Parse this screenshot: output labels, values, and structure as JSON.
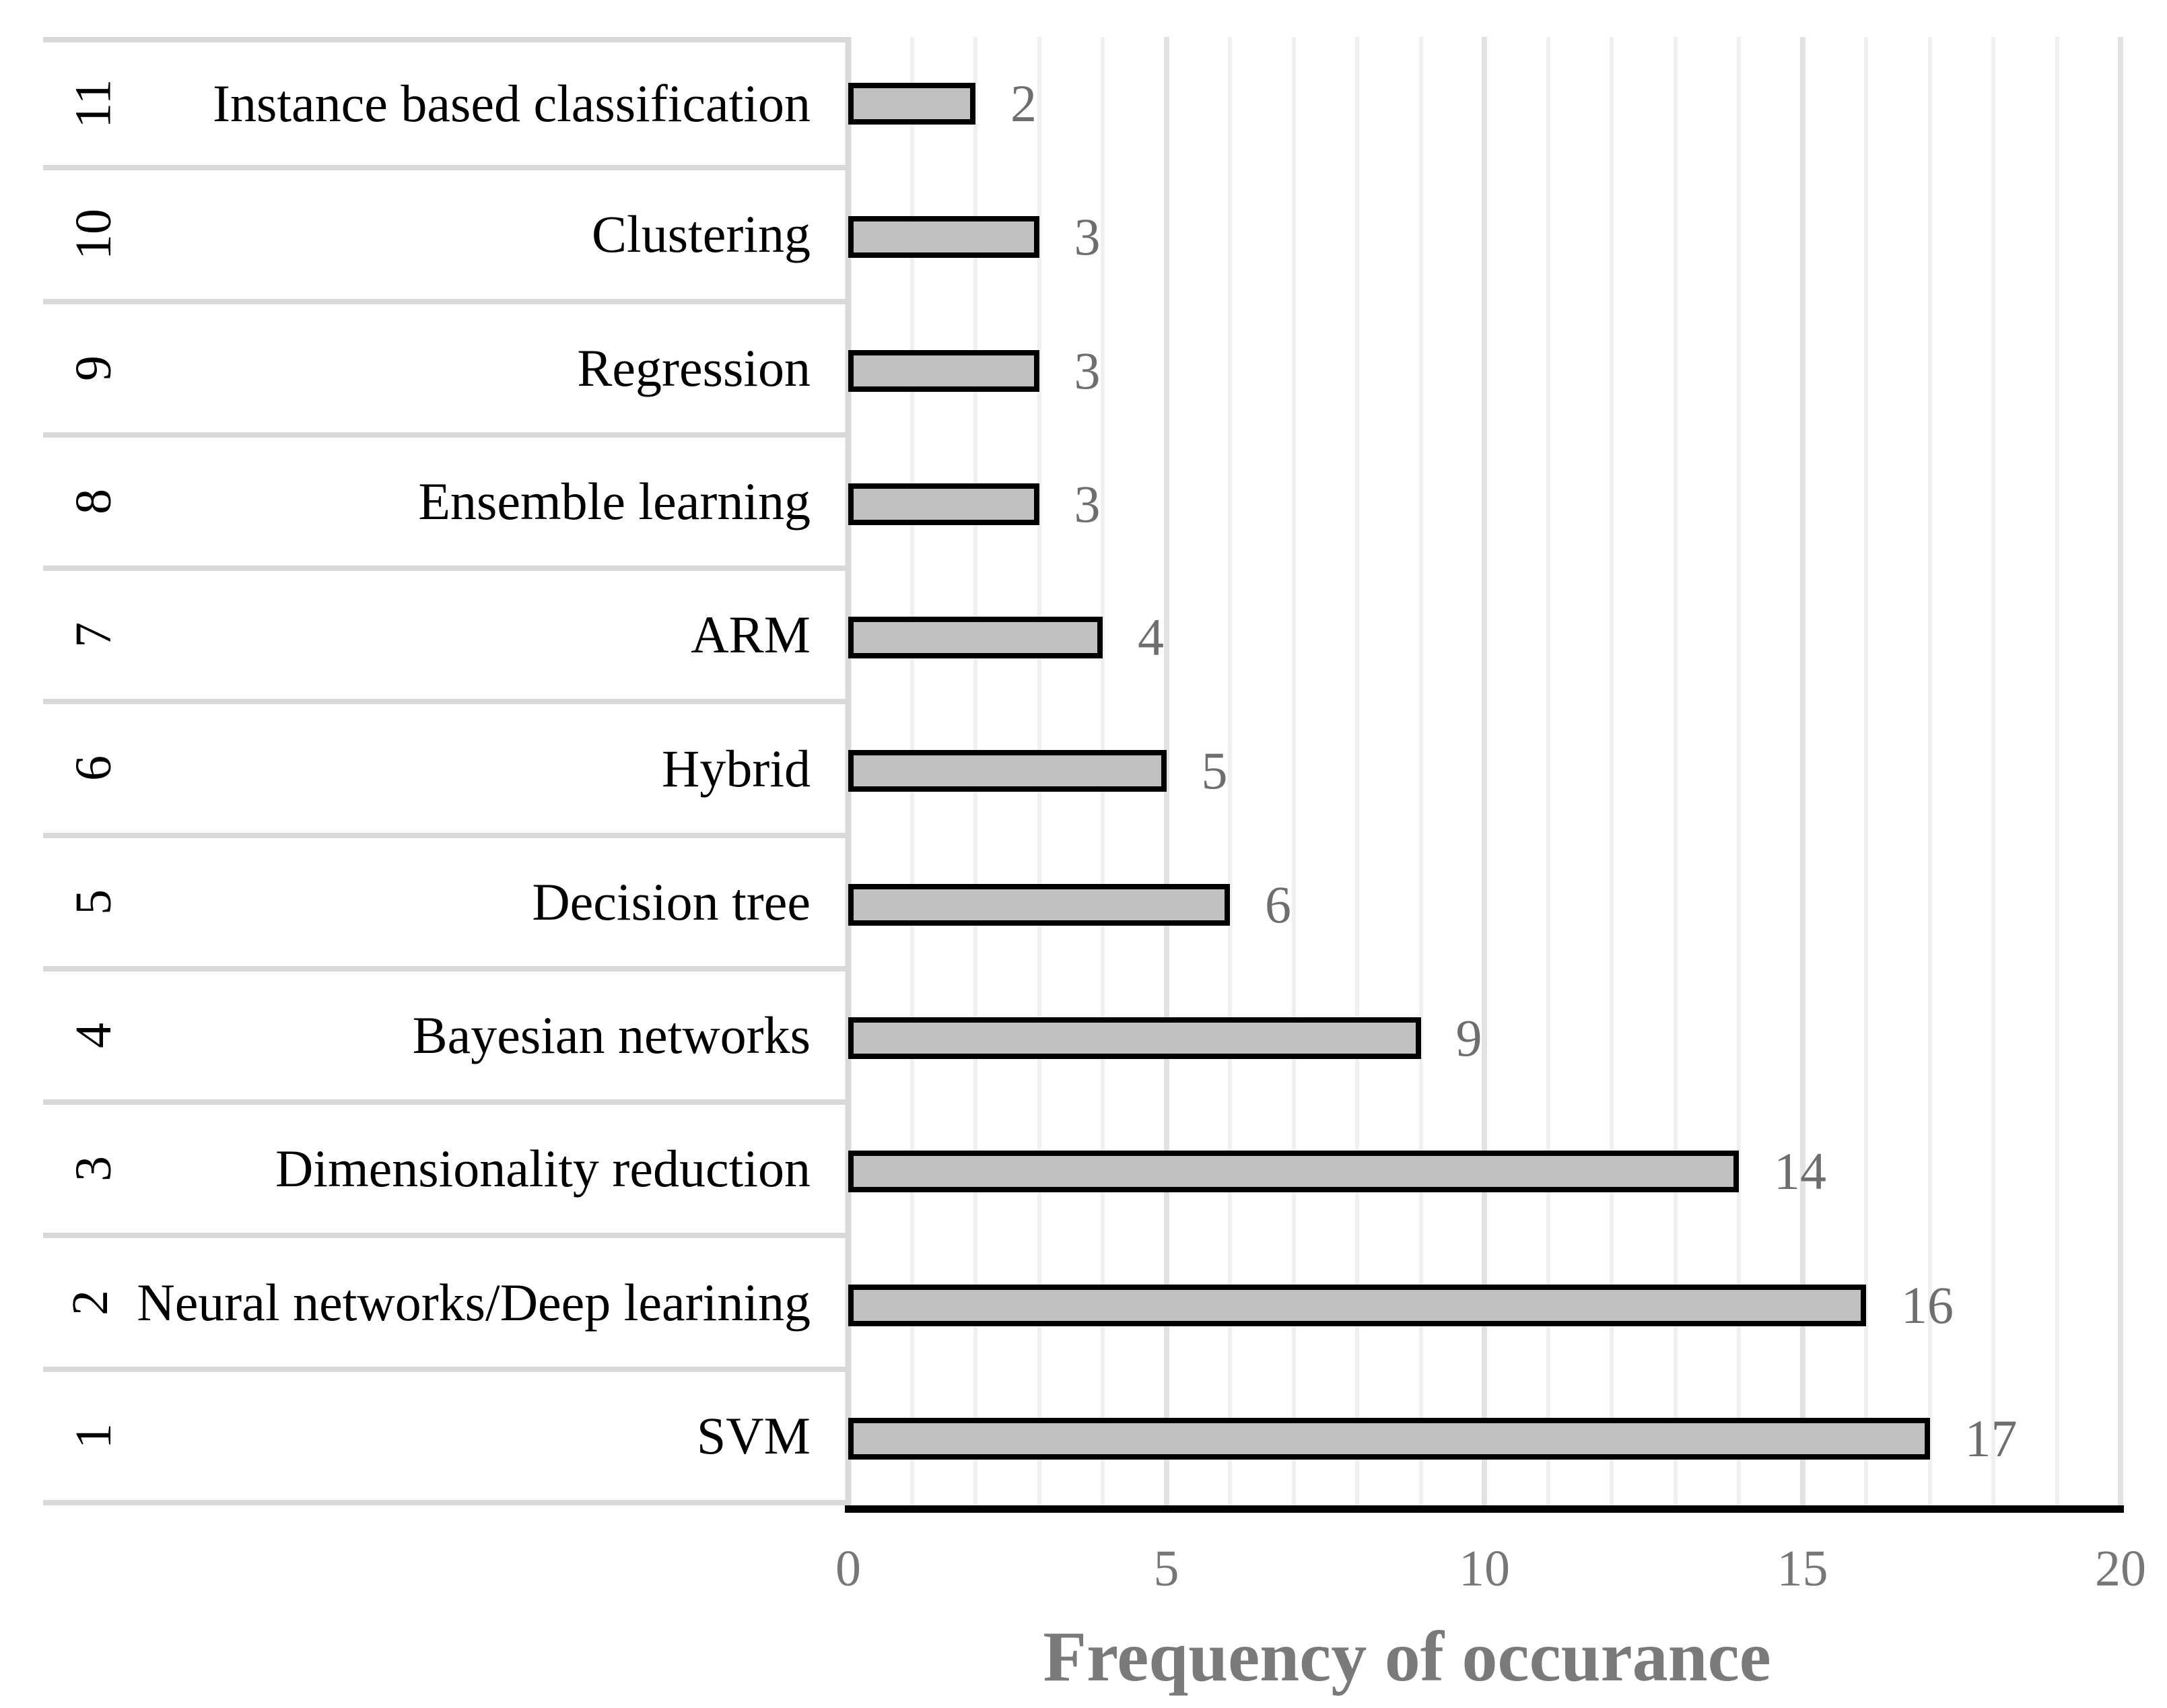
{
  "chart_data": {
    "type": "bar",
    "orientation": "horizontal",
    "xlabel": "Frequency of occurance",
    "xlim": [
      0,
      20
    ],
    "x_ticks": [
      0,
      5,
      10,
      15,
      20
    ],
    "gridline_step": 1,
    "grid": true,
    "legend": false,
    "rows": [
      {
        "rank": "11",
        "category": "Instance based classification",
        "value": 2
      },
      {
        "rank": "10",
        "category": "Clustering",
        "value": 3
      },
      {
        "rank": "9",
        "category": "Regression",
        "value": 3
      },
      {
        "rank": "8",
        "category": "Ensemble learning",
        "value": 3
      },
      {
        "rank": "7",
        "category": "ARM",
        "value": 4
      },
      {
        "rank": "6",
        "category": "Hybrid",
        "value": 5
      },
      {
        "rank": "5",
        "category": "Decision tree",
        "value": 6
      },
      {
        "rank": "4",
        "category": "Bayesian networks",
        "value": 9
      },
      {
        "rank": "3",
        "category": "Dimensionality reduction",
        "value": 14
      },
      {
        "rank": "2",
        "category": "Neural networks/Deep learining",
        "value": 16
      },
      {
        "rank": "1",
        "category": "SVM",
        "value": 17
      }
    ],
    "colors": {
      "bar_fill": "#c0c0c0",
      "bar_border": "#000000",
      "value_label": "#6e6e6e",
      "tick_label": "#777777",
      "axis_title": "#7a7a7a",
      "grid_minor": "#f0f0f0",
      "grid_major": "#e2e2e2",
      "table_border": "#d9d9d9",
      "axis_line": "#000000"
    }
  }
}
